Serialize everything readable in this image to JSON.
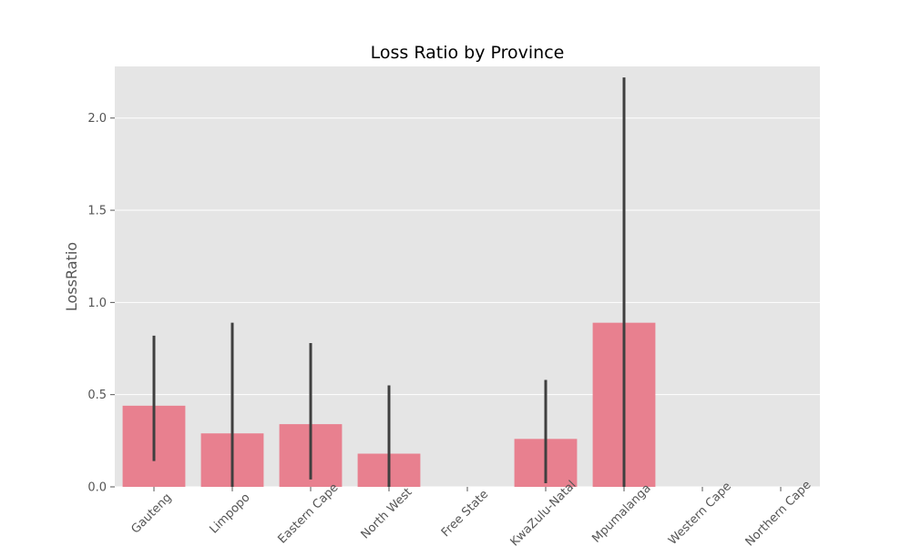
{
  "chart_data": {
    "type": "bar",
    "title": "Loss Ratio by Province",
    "xlabel": "",
    "ylabel": "LossRatio",
    "categories": [
      "Gauteng",
      "Limpopo",
      "Eastern Cape",
      "North West",
      "Free State",
      "KwaZulu-Natal",
      "Mpumalanga",
      "Western Cape",
      "Northern Cape"
    ],
    "values": [
      0.44,
      0.29,
      0.34,
      0.18,
      0.0,
      0.26,
      0.89,
      0.0,
      0.0
    ],
    "error_bars": [
      [
        0.14,
        0.82
      ],
      [
        0.0,
        0.89
      ],
      [
        0.04,
        0.78
      ],
      [
        0.0,
        0.55
      ],
      null,
      [
        0.02,
        0.58
      ],
      [
        0.0,
        2.22
      ],
      null,
      null
    ],
    "yticks": [
      "0.0",
      "0.5",
      "1.0",
      "1.5",
      "2.0"
    ],
    "ytick_values": [
      0.0,
      0.5,
      1.0,
      1.5,
      2.0
    ],
    "ylim": [
      0.0,
      2.28
    ],
    "grid": true,
    "colors": {
      "bar": "#e8808f",
      "error_bar": "#3f3f3f",
      "plot_background": "#e5e5e5",
      "grid": "#ffffff",
      "text": "#555555",
      "title": "#000000"
    }
  }
}
